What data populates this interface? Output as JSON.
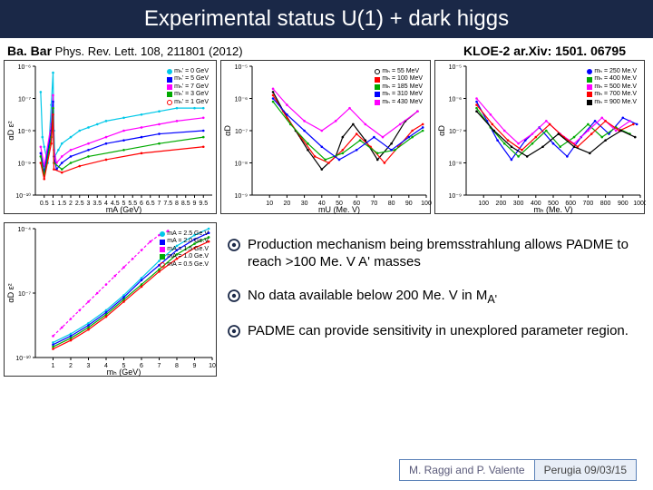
{
  "title": "Experimental status U(1) + dark higgs",
  "ref_left_bold": "Ba. Bar",
  "ref_left_rest": " Phys. Rev. Lett. 108, 211801 (2012)",
  "ref_right": "KLOE-2 ar.Xiv: 1501. 06795",
  "bullets": [
    "Production mechanism being bremsstrahlung allows PADME to reach >100 Me. V A' masses",
    "No data available below 200 Me. V in M",
    "PADME can provide sensitivity in unexplored parameter region."
  ],
  "bullet2_sub": "A'",
  "footer_left": "M. Raggi and P. Valente",
  "footer_right": "Perugia 09/03/15",
  "chart1": {
    "ylabel": "αD ε²",
    "xlabel": "mA (GeV)",
    "xlim": [
      0,
      10
    ],
    "xtick": [
      0.5,
      1,
      1.5,
      2,
      2.5,
      3,
      3.5,
      4,
      4.5,
      5,
      5.5,
      6,
      6.5,
      7,
      7.5,
      8,
      8.5,
      9,
      9.5
    ],
    "ylim": [
      -10,
      -6
    ],
    "ytick_exp": [
      -10,
      -9,
      -8,
      -7,
      -6
    ],
    "legend": [
      {
        "label": "mₕ' = 0 GeV",
        "color": "#00c8e8",
        "marker": "circle"
      },
      {
        "label": "mₕ' = 5 GeV",
        "color": "#0000ff",
        "marker": "square"
      },
      {
        "label": "mₕ' = 7 GeV",
        "color": "#ff00ff",
        "marker": "triangle"
      },
      {
        "label": "mₕ' = 3 GeV",
        "color": "#00aa00",
        "marker": "triangle-down"
      },
      {
        "label": "mₕ' = 1 GeV",
        "color": "#ff0000",
        "marker": "circle-open"
      }
    ],
    "curves": [
      {
        "color": "#00c8e8",
        "points": [
          [
            0.3,
            -6.8
          ],
          [
            0.4,
            -8.2
          ],
          [
            0.5,
            -8.5
          ],
          [
            0.7,
            -9.0
          ],
          [
            0.9,
            -7.2
          ],
          [
            1.0,
            -6.2
          ],
          [
            1.05,
            -8.0
          ],
          [
            1.1,
            -8.8
          ],
          [
            1.3,
            -8.6
          ],
          [
            1.5,
            -8.4
          ],
          [
            2.0,
            -8.2
          ],
          [
            2.5,
            -8.0
          ],
          [
            3.0,
            -7.9
          ],
          [
            3.5,
            -7.8
          ],
          [
            4.0,
            -7.7
          ],
          [
            5.0,
            -7.6
          ],
          [
            6.0,
            -7.5
          ],
          [
            7.0,
            -7.4
          ],
          [
            8.0,
            -7.3
          ],
          [
            9.0,
            -7.3
          ],
          [
            9.5,
            -7.3
          ]
        ]
      },
      {
        "color": "#ff00ff",
        "points": [
          [
            0.3,
            -8.5
          ],
          [
            0.5,
            -9.1
          ],
          [
            0.9,
            -7.8
          ],
          [
            1.0,
            -6.9
          ],
          [
            1.05,
            -8.6
          ],
          [
            1.2,
            -9.0
          ],
          [
            1.5,
            -8.8
          ],
          [
            2.0,
            -8.6
          ],
          [
            3.0,
            -8.4
          ],
          [
            4.0,
            -8.2
          ],
          [
            5.0,
            -8.0
          ],
          [
            6.0,
            -7.9
          ],
          [
            7.0,
            -7.8
          ],
          [
            8.0,
            -7.7
          ],
          [
            9.5,
            -7.6
          ]
        ]
      },
      {
        "color": "#0000ff",
        "points": [
          [
            0.3,
            -8.7
          ],
          [
            0.5,
            -9.3
          ],
          [
            0.9,
            -8.0
          ],
          [
            1.0,
            -7.1
          ],
          [
            1.05,
            -8.8
          ],
          [
            1.2,
            -9.2
          ],
          [
            1.5,
            -9.0
          ],
          [
            2.0,
            -8.8
          ],
          [
            3.0,
            -8.6
          ],
          [
            4.0,
            -8.4
          ],
          [
            5.0,
            -8.3
          ],
          [
            6.0,
            -8.2
          ],
          [
            7.0,
            -8.1
          ],
          [
            9.5,
            -8.0
          ]
        ]
      },
      {
        "color": "#00aa00",
        "points": [
          [
            0.3,
            -8.8
          ],
          [
            0.5,
            -9.4
          ],
          [
            0.9,
            -8.2
          ],
          [
            1.0,
            -7.3
          ],
          [
            1.05,
            -9.0
          ],
          [
            1.5,
            -9.2
          ],
          [
            2.0,
            -9.0
          ],
          [
            3.0,
            -8.8
          ],
          [
            5.0,
            -8.6
          ],
          [
            7.0,
            -8.4
          ],
          [
            9.5,
            -8.2
          ]
        ]
      },
      {
        "color": "#ff0000",
        "points": [
          [
            0.3,
            -9.0
          ],
          [
            0.5,
            -9.5
          ],
          [
            0.9,
            -8.4
          ],
          [
            1.0,
            -7.5
          ],
          [
            1.05,
            -9.2
          ],
          [
            1.5,
            -9.3
          ],
          [
            2.5,
            -9.1
          ],
          [
            4.0,
            -8.9
          ],
          [
            6.0,
            -8.7
          ],
          [
            9.5,
            -8.5
          ]
        ]
      }
    ]
  },
  "chart2": {
    "ylabel": "αD",
    "xlabel": "mU (Me. V)",
    "xlim": [
      0,
      100
    ],
    "xtick": [
      10,
      20,
      30,
      40,
      50,
      60,
      70,
      80,
      90,
      100
    ],
    "ylim_exp": [
      -9,
      -5
    ],
    "ytick_exp": [
      -9,
      -8,
      -7,
      -6,
      -5
    ],
    "legend": [
      {
        "label": "mₕ = 55 MeV",
        "color": "#000",
        "marker": "circle-open"
      },
      {
        "label": "mₕ = 100 MeV",
        "color": "#ff0000",
        "marker": "square"
      },
      {
        "label": "mₕ = 185 MeV",
        "color": "#00aa00",
        "marker": "triangle"
      },
      {
        "label": "mₕ = 310 MeV",
        "color": "#0000ff",
        "marker": "triangle-down"
      },
      {
        "label": "mₕ = 430 MeV",
        "color": "#ff00ff",
        "marker": "diamond"
      }
    ],
    "curves": [
      {
        "color": "#000",
        "points": [
          [
            12,
            -5.8
          ],
          [
            18,
            -6.4
          ],
          [
            25,
            -7.0
          ],
          [
            32,
            -7.6
          ],
          [
            40,
            -8.2
          ],
          [
            48,
            -7.8
          ],
          [
            52,
            -7.2
          ],
          [
            58,
            -6.8
          ],
          [
            65,
            -7.3
          ],
          [
            72,
            -7.9
          ],
          [
            80,
            -7.4
          ],
          [
            88,
            -6.7
          ],
          [
            95,
            -6.4
          ]
        ]
      },
      {
        "color": "#ff0000",
        "points": [
          [
            12,
            -5.9
          ],
          [
            20,
            -6.6
          ],
          [
            28,
            -7.2
          ],
          [
            36,
            -7.8
          ],
          [
            44,
            -8.0
          ],
          [
            52,
            -7.6
          ],
          [
            60,
            -7.1
          ],
          [
            68,
            -7.5
          ],
          [
            76,
            -8.0
          ],
          [
            84,
            -7.5
          ],
          [
            92,
            -7.0
          ],
          [
            98,
            -6.8
          ]
        ]
      },
      {
        "color": "#00aa00",
        "points": [
          [
            12,
            -6.1
          ],
          [
            22,
            -6.8
          ],
          [
            32,
            -7.4
          ],
          [
            42,
            -7.9
          ],
          [
            52,
            -7.7
          ],
          [
            62,
            -7.3
          ],
          [
            72,
            -7.7
          ],
          [
            82,
            -7.6
          ],
          [
            92,
            -7.2
          ],
          [
            98,
            -7.0
          ]
        ]
      },
      {
        "color": "#0000ff",
        "points": [
          [
            12,
            -6.0
          ],
          [
            20,
            -6.5
          ],
          [
            30,
            -7.0
          ],
          [
            40,
            -7.5
          ],
          [
            50,
            -7.9
          ],
          [
            60,
            -7.6
          ],
          [
            70,
            -7.2
          ],
          [
            80,
            -7.6
          ],
          [
            90,
            -7.2
          ],
          [
            98,
            -6.9
          ]
        ]
      },
      {
        "color": "#ff00ff",
        "points": [
          [
            12,
            -5.7
          ],
          [
            20,
            -6.2
          ],
          [
            30,
            -6.7
          ],
          [
            40,
            -7.0
          ],
          [
            48,
            -6.7
          ],
          [
            56,
            -6.3
          ],
          [
            65,
            -6.8
          ],
          [
            75,
            -7.2
          ],
          [
            85,
            -6.8
          ],
          [
            95,
            -6.4
          ]
        ]
      }
    ]
  },
  "chart3": {
    "ylabel": "αD",
    "xlabel": "mₕ (Me. V)",
    "xlim": [
      0,
      1000
    ],
    "xtick": [
      100,
      200,
      300,
      400,
      500,
      600,
      700,
      800,
      900,
      1000
    ],
    "ylim_exp": [
      -9,
      -5
    ],
    "ytick_exp": [
      -9,
      -8,
      -7,
      -6,
      -5
    ],
    "legend": [
      {
        "label": "mₕ = 250 Me.V",
        "color": "#0000ff",
        "marker": "circle"
      },
      {
        "label": "mₕ = 400 Me.V",
        "color": "#00aa00",
        "marker": "square"
      },
      {
        "label": "mₕ = 500 Me.V",
        "color": "#ff00ff",
        "marker": "triangle"
      },
      {
        "label": "mₕ = 700 Me.V",
        "color": "#ff0000",
        "marker": "triangle-down"
      },
      {
        "label": "mₕ = 900 Me.V",
        "color": "#000",
        "marker": "diamond"
      }
    ],
    "curves": [
      {
        "color": "#0000ff",
        "points": [
          [
            60,
            -6.1
          ],
          [
            120,
            -6.7
          ],
          [
            180,
            -7.3
          ],
          [
            260,
            -7.9
          ],
          [
            340,
            -7.3
          ],
          [
            420,
            -6.9
          ],
          [
            500,
            -7.4
          ],
          [
            580,
            -7.8
          ],
          [
            660,
            -7.2
          ],
          [
            740,
            -6.7
          ],
          [
            820,
            -7.1
          ],
          [
            900,
            -6.6
          ],
          [
            980,
            -6.8
          ]
        ]
      },
      {
        "color": "#00aa00",
        "points": [
          [
            60,
            -6.3
          ],
          [
            140,
            -6.9
          ],
          [
            220,
            -7.4
          ],
          [
            300,
            -7.8
          ],
          [
            380,
            -7.4
          ],
          [
            460,
            -7.0
          ],
          [
            540,
            -7.5
          ],
          [
            620,
            -7.2
          ],
          [
            700,
            -6.8
          ],
          [
            780,
            -7.2
          ],
          [
            860,
            -6.9
          ],
          [
            940,
            -7.1
          ]
        ]
      },
      {
        "color": "#ff00ff",
        "points": [
          [
            60,
            -6.0
          ],
          [
            140,
            -6.5
          ],
          [
            220,
            -7.0
          ],
          [
            300,
            -7.4
          ],
          [
            380,
            -7.1
          ],
          [
            460,
            -6.7
          ],
          [
            540,
            -7.1
          ],
          [
            620,
            -7.4
          ],
          [
            700,
            -7.0
          ],
          [
            780,
            -6.6
          ],
          [
            860,
            -7.0
          ],
          [
            940,
            -6.7
          ]
        ]
      },
      {
        "color": "#ff0000",
        "points": [
          [
            60,
            -6.2
          ],
          [
            150,
            -6.8
          ],
          [
            240,
            -7.3
          ],
          [
            320,
            -7.6
          ],
          [
            400,
            -7.2
          ],
          [
            480,
            -6.8
          ],
          [
            560,
            -7.2
          ],
          [
            640,
            -7.5
          ],
          [
            720,
            -7.1
          ],
          [
            800,
            -6.7
          ],
          [
            880,
            -7.0
          ],
          [
            960,
            -6.8
          ]
        ]
      },
      {
        "color": "#000",
        "points": [
          [
            60,
            -6.4
          ],
          [
            160,
            -7.0
          ],
          [
            260,
            -7.5
          ],
          [
            350,
            -7.8
          ],
          [
            440,
            -7.5
          ],
          [
            530,
            -7.1
          ],
          [
            620,
            -7.5
          ],
          [
            710,
            -7.7
          ],
          [
            800,
            -7.3
          ],
          [
            890,
            -7.0
          ],
          [
            970,
            -7.2
          ]
        ]
      }
    ]
  },
  "chart4": {
    "ylabel": "αD ε²",
    "xlabel": "mₕ (GeV)",
    "xlim": [
      0,
      10
    ],
    "xtick": [
      1,
      2,
      3,
      4,
      5,
      6,
      7,
      8,
      9,
      10
    ],
    "ylim_exp": [
      -10,
      -4
    ],
    "ytick_exp": [
      -10,
      -7,
      -4
    ],
    "legend": [
      {
        "label": "mA = 2.5 Ge.V",
        "color": "#00c8e8",
        "marker": "circle"
      },
      {
        "label": "mA = 2.0 Ge.V",
        "color": "#0000ff",
        "marker": "square"
      },
      {
        "label": "mA = 1.5 Ge.V",
        "color": "#ff00ff",
        "marker": "triangle"
      },
      {
        "label": "mA = 1.0 Ge.V",
        "color": "#00aa00",
        "marker": "triangle-down"
      },
      {
        "label": "mA = 0.5 Ge.V",
        "color": "#ff0000",
        "marker": "circle-open"
      }
    ],
    "curves": [
      {
        "color": "#ff00ff",
        "dashed": true,
        "points": [
          [
            1.0,
            -9.0
          ],
          [
            1.5,
            -8.6
          ],
          [
            2.0,
            -8.2
          ],
          [
            2.5,
            -7.8
          ],
          [
            3.0,
            -7.4
          ],
          [
            3.5,
            -7.0
          ],
          [
            4.0,
            -6.6
          ],
          [
            4.5,
            -6.2
          ],
          [
            5.0,
            -5.8
          ],
          [
            5.5,
            -5.4
          ],
          [
            6.0,
            -5.0
          ],
          [
            6.5,
            -4.6
          ],
          [
            7.0,
            -4.3
          ],
          [
            7.5,
            -4.1
          ]
        ]
      },
      {
        "color": "#00c8e8",
        "points": [
          [
            1.0,
            -9.3
          ],
          [
            2.0,
            -8.9
          ],
          [
            3.0,
            -8.4
          ],
          [
            4.0,
            -7.8
          ],
          [
            5.0,
            -7.1
          ],
          [
            6.0,
            -6.3
          ],
          [
            7.0,
            -5.5
          ],
          [
            8.0,
            -4.8
          ],
          [
            9.0,
            -4.3
          ],
          [
            9.8,
            -4.0
          ]
        ]
      },
      {
        "color": "#0000ff",
        "points": [
          [
            1.0,
            -9.4
          ],
          [
            2.0,
            -9.0
          ],
          [
            3.0,
            -8.5
          ],
          [
            4.0,
            -7.9
          ],
          [
            5.0,
            -7.2
          ],
          [
            6.0,
            -6.4
          ],
          [
            7.0,
            -5.7
          ],
          [
            8.0,
            -5.0
          ],
          [
            9.0,
            -4.5
          ],
          [
            9.8,
            -4.2
          ]
        ]
      },
      {
        "color": "#00aa00",
        "points": [
          [
            1.0,
            -9.5
          ],
          [
            2.0,
            -9.1
          ],
          [
            3.0,
            -8.6
          ],
          [
            4.0,
            -8.0
          ],
          [
            5.0,
            -7.3
          ],
          [
            6.0,
            -6.6
          ],
          [
            7.0,
            -5.9
          ],
          [
            8.0,
            -5.2
          ],
          [
            9.0,
            -4.7
          ],
          [
            9.8,
            -4.4
          ]
        ]
      },
      {
        "color": "#ff0000",
        "points": [
          [
            1.0,
            -9.6
          ],
          [
            2.0,
            -9.2
          ],
          [
            3.0,
            -8.7
          ],
          [
            4.0,
            -8.1
          ],
          [
            5.0,
            -7.4
          ],
          [
            6.0,
            -6.7
          ],
          [
            7.0,
            -6.0
          ],
          [
            8.0,
            -5.4
          ],
          [
            9.0,
            -4.9
          ],
          [
            9.8,
            -4.6
          ]
        ]
      }
    ]
  },
  "bullet_icon_stroke": "#1a2847",
  "bullet_icon_fill": "#1a2847"
}
